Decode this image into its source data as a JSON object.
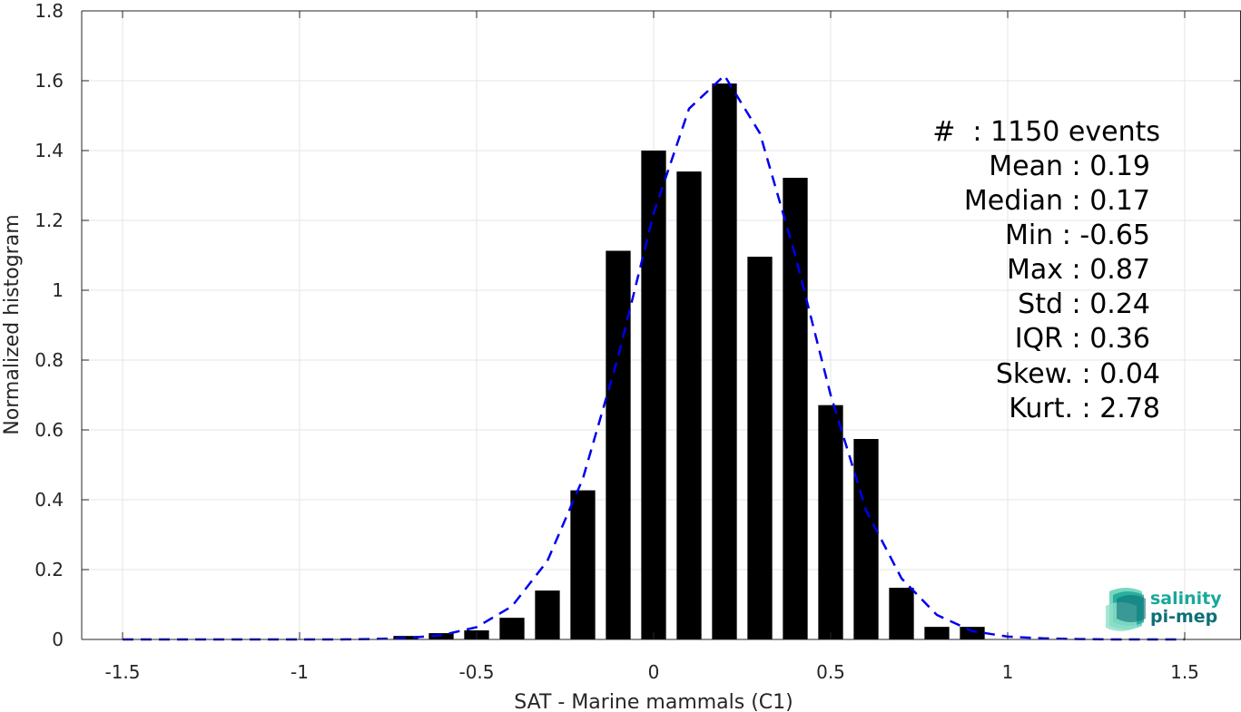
{
  "chart_data": {
    "type": "bar",
    "xlabel": "SAT - Marine mammals (C1)",
    "ylabel": "Normalized histogram",
    "xlim": [
      -1.5,
      1.5
    ],
    "ylim": [
      0,
      1.8
    ],
    "grid": true,
    "x_ticks": [
      -1.5,
      -1,
      -0.5,
      0,
      0.5,
      1,
      1.5
    ],
    "x_tick_labels": [
      "-1.5",
      "-1",
      "-0.5",
      "0",
      "0.5",
      "1",
      "1.5"
    ],
    "y_ticks": [
      0,
      0.2,
      0.4,
      0.6,
      0.8,
      1,
      1.2,
      1.4,
      1.6,
      1.8
    ],
    "y_tick_labels": [
      "0",
      "0.2",
      "0.4",
      "0.6",
      "0.8",
      "1",
      "1.2",
      "1.4",
      "1.6",
      "1.8"
    ],
    "bar_color": "#000000",
    "bars": {
      "x": [
        -0.7,
        -0.6,
        -0.5,
        -0.4,
        -0.3,
        -0.2,
        -0.1,
        0.0,
        0.1,
        0.2,
        0.3,
        0.4,
        0.5,
        0.6,
        0.7,
        0.8,
        0.9
      ],
      "values": [
        0.01,
        0.018,
        0.026,
        0.062,
        0.14,
        0.427,
        1.113,
        1.4,
        1.34,
        1.592,
        1.096,
        1.322,
        0.671,
        0.574,
        0.148,
        0.036,
        0.036
      ]
    },
    "fit_curve": {
      "style": "dashed",
      "color": "#0000ee",
      "x": [
        -1.5,
        -1.4,
        -1.3,
        -1.2,
        -1.1,
        -1.0,
        -0.9,
        -0.8,
        -0.7,
        -0.6,
        -0.5,
        -0.4,
        -0.3,
        -0.2,
        -0.1,
        0.0,
        0.1,
        0.2,
        0.3,
        0.4,
        0.5,
        0.6,
        0.7,
        0.8,
        0.9,
        1.0,
        1.1,
        1.2,
        1.3,
        1.4,
        1.5
      ],
      "y": [
        0,
        0,
        0,
        0,
        0,
        0,
        0,
        0.001,
        0.004,
        0.012,
        0.035,
        0.095,
        0.225,
        0.46,
        0.81,
        1.22,
        1.52,
        1.615,
        1.45,
        1.1,
        0.7,
        0.37,
        0.175,
        0.07,
        0.024,
        0.008,
        0.003,
        0.001,
        0,
        0,
        0
      ]
    },
    "annotations": [
      "#  : 1150 events",
      "Mean : 0.19",
      "Median : 0.17",
      "Min : -0.65",
      "Max : 0.87",
      "Std : 0.24",
      "IQR : 0.36",
      "Skew. : 0.04",
      "Kurt. : 2.78"
    ]
  },
  "logo": {
    "line1": "salinity",
    "line2": "pi-mep",
    "colors": [
      "#1aa89a",
      "#0e6f77",
      "#5fd0b5"
    ]
  }
}
